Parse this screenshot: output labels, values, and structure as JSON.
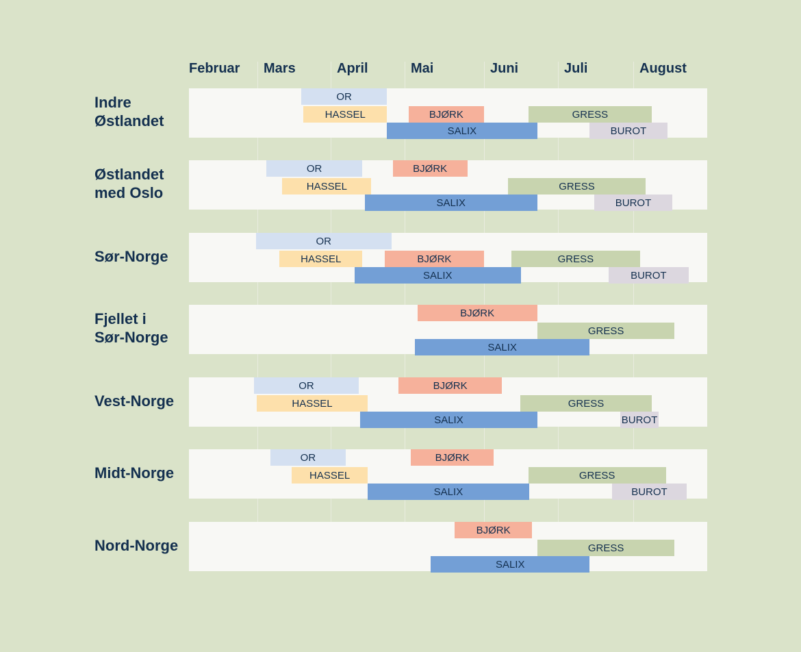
{
  "chart_data": {
    "type": "gantt",
    "months": [
      "Februar",
      "Mars",
      "April",
      "Mai",
      "Juni",
      "Juli",
      "August"
    ],
    "colors": {
      "OR": "#d4e0f1",
      "HASSEL": "#fde0ab",
      "BJØRK": "#f6b19b",
      "GRESS": "#c8d4af",
      "SALIX": "#739fd6",
      "BUROT": "#dcd7df"
    },
    "regions": [
      {
        "name": "Indre\nØstlandet",
        "lanes": [
          [
            {
              "label": "OR",
              "start": 3.6,
              "end": 4.76
            }
          ],
          [
            {
              "label": "HASSEL",
              "start": 3.63,
              "end": 4.76
            },
            {
              "label": "BJØRK",
              "start": 5.05,
              "end": 6.0
            },
            {
              "label": "GRESS",
              "start": 6.6,
              "end": 8.25
            }
          ],
          [
            {
              "label": "SALIX",
              "start": 4.76,
              "end": 6.72
            },
            {
              "label": "BUROT",
              "start": 7.42,
              "end": 8.46
            }
          ]
        ]
      },
      {
        "name": "Østlandet\nmed Oslo",
        "lanes": [
          [
            {
              "label": "OR",
              "start": 3.12,
              "end": 4.43
            },
            {
              "label": "BJØRK",
              "start": 4.84,
              "end": 5.79
            }
          ],
          [
            {
              "label": "HASSEL",
              "start": 3.34,
              "end": 4.55
            },
            {
              "label": "GRESS",
              "start": 6.32,
              "end": 8.17
            }
          ],
          [
            {
              "label": "SALIX",
              "start": 4.46,
              "end": 6.72
            },
            {
              "label": "BUROT",
              "start": 7.48,
              "end": 8.53
            }
          ]
        ]
      },
      {
        "name": "Sør-Norge",
        "lanes": [
          [
            {
              "label": "OR",
              "start": 2.98,
              "end": 4.82
            }
          ],
          [
            {
              "label": "HASSEL",
              "start": 3.3,
              "end": 4.43
            },
            {
              "label": "BJØRK",
              "start": 4.73,
              "end": 6.0
            },
            {
              "label": "GRESS",
              "start": 6.37,
              "end": 8.09
            }
          ],
          [
            {
              "label": "SALIX",
              "start": 4.32,
              "end": 6.5
            },
            {
              "label": "BUROT",
              "start": 7.67,
              "end": 8.75
            }
          ]
        ]
      },
      {
        "name": "Fjellet i\nSør-Norge",
        "lanes": [
          [
            {
              "label": "BJØRK",
              "start": 5.16,
              "end": 6.72
            }
          ],
          [
            {
              "label": "GRESS",
              "start": 6.72,
              "end": 8.56
            }
          ],
          [
            {
              "label": "SALIX",
              "start": 5.13,
              "end": 7.42
            }
          ]
        ]
      },
      {
        "name": "Vest-Norge",
        "lanes": [
          [
            {
              "label": "OR",
              "start": 2.95,
              "end": 4.38
            },
            {
              "label": "BJØRK",
              "start": 4.92,
              "end": 6.24
            }
          ],
          [
            {
              "label": "HASSEL",
              "start": 2.99,
              "end": 4.5
            },
            {
              "label": "GRESS",
              "start": 6.49,
              "end": 8.25
            }
          ],
          [
            {
              "label": "SALIX",
              "start": 4.4,
              "end": 6.72
            },
            {
              "label": "BUROT",
              "start": 7.83,
              "end": 8.34
            }
          ]
        ]
      },
      {
        "name": "Midt-Norge",
        "lanes": [
          [
            {
              "label": "OR",
              "start": 3.18,
              "end": 4.2
            },
            {
              "label": "BJØRK",
              "start": 5.08,
              "end": 6.13
            }
          ],
          [
            {
              "label": "HASSEL",
              "start": 3.47,
              "end": 4.5
            },
            {
              "label": "GRESS",
              "start": 6.6,
              "end": 8.44
            }
          ],
          [
            {
              "label": "SALIX",
              "start": 4.5,
              "end": 6.61
            },
            {
              "label": "BUROT",
              "start": 7.72,
              "end": 8.72
            }
          ]
        ]
      },
      {
        "name": "Nord-Norge",
        "lanes": [
          [
            {
              "label": "BJØRK",
              "start": 5.63,
              "end": 6.65
            }
          ],
          [
            {
              "label": "GRESS",
              "start": 6.72,
              "end": 8.56
            }
          ],
          [
            {
              "label": "SALIX",
              "start": 5.33,
              "end": 7.42
            }
          ]
        ]
      }
    ]
  }
}
